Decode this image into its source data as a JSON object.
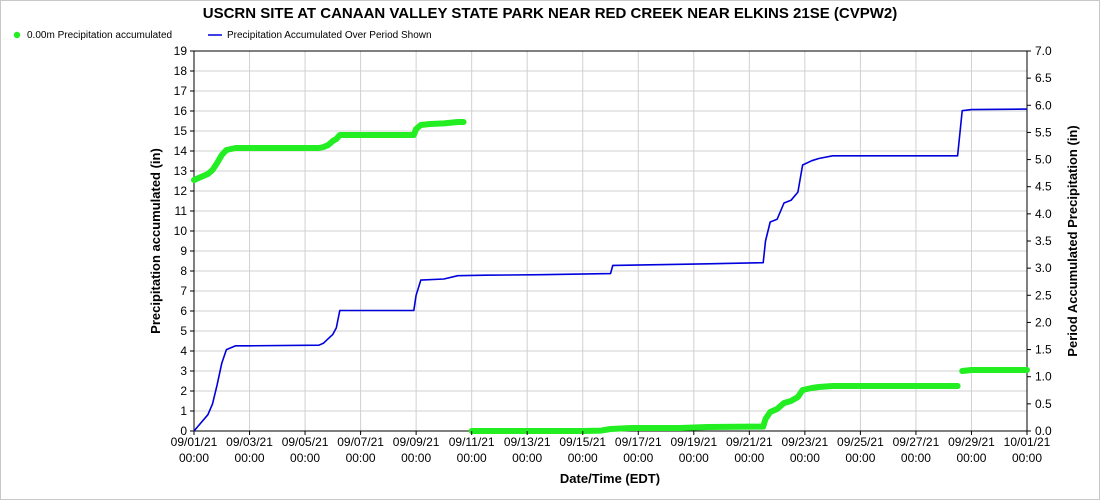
{
  "chart_data": {
    "type": "line",
    "title": "USCRN SITE AT CANAAN VALLEY STATE PARK NEAR RED CREEK NEAR ELKINS 21SE (CVPW2)",
    "xlabel": "Date/Time (EDT)",
    "ylabel_left": "Precipitation accumulated (in)",
    "ylabel_right": "Period Accumulated Precipitation (in)",
    "x_tick_dates": [
      "09/01/21",
      "09/03/21",
      "09/05/21",
      "09/07/21",
      "09/09/21",
      "09/11/21",
      "09/13/21",
      "09/15/21",
      "09/17/21",
      "09/19/21",
      "09/21/21",
      "09/23/21",
      "09/25/21",
      "09/27/21",
      "09/29/21",
      "10/01/21"
    ],
    "x_tick_time": "00:00",
    "xlim": [
      "2021-09-01 00:00",
      "2021-10-01 00:00"
    ],
    "ylim_left": [
      0,
      19
    ],
    "yticks_left": [
      "0",
      "1",
      "2",
      "3",
      "4",
      "5",
      "6",
      "7",
      "8",
      "9",
      "10",
      "11",
      "12",
      "13",
      "14",
      "15",
      "16",
      "17",
      "18",
      "19"
    ],
    "ylim_right": [
      0,
      7
    ],
    "yticks_right": [
      "0.0",
      "0.5",
      "1.0",
      "1.5",
      "2.0",
      "2.5",
      "3.0",
      "3.5",
      "4.0",
      "4.5",
      "5.0",
      "5.5",
      "6.0",
      "6.5",
      "7.0"
    ],
    "grid": true,
    "legend_position": "top-left",
    "series": [
      {
        "name": "0.00m Precipitation accumulated",
        "color": "#22ee22",
        "axis": "left",
        "style": "thick",
        "segments": [
          [
            [
              "2021-09-01 00:00",
              12.55
            ],
            [
              "2021-09-01 06:00",
              12.7
            ],
            [
              "2021-09-01 12:00",
              12.85
            ],
            [
              "2021-09-01 16:00",
              13.05
            ],
            [
              "2021-09-01 20:00",
              13.4
            ],
            [
              "2021-09-02 00:00",
              13.8
            ],
            [
              "2021-09-02 04:00",
              14.05
            ],
            [
              "2021-09-02 12:00",
              14.15
            ],
            [
              "2021-09-03 00:00",
              14.15
            ],
            [
              "2021-09-05 12:00",
              14.15
            ],
            [
              "2021-09-05 16:00",
              14.2
            ],
            [
              "2021-09-05 20:00",
              14.3
            ],
            [
              "2021-09-06 00:00",
              14.5
            ],
            [
              "2021-09-06 03:00",
              14.6
            ],
            [
              "2021-09-06 06:00",
              14.8
            ],
            [
              "2021-09-07 12:00",
              14.8
            ],
            [
              "2021-09-08 12:00",
              14.8
            ],
            [
              "2021-09-08 22:00",
              14.8
            ],
            [
              "2021-09-09 00:00",
              15.1
            ],
            [
              "2021-09-09 04:00",
              15.3
            ],
            [
              "2021-09-09 12:00",
              15.35
            ],
            [
              "2021-09-10 00:00",
              15.38
            ],
            [
              "2021-09-10 12:00",
              15.45
            ],
            [
              "2021-09-10 17:00",
              15.45
            ]
          ],
          [
            [
              "2021-09-11 00:00",
              0.0
            ],
            [
              "2021-09-13 12:00",
              0.0
            ],
            [
              "2021-09-15 00:00",
              0.0
            ],
            [
              "2021-09-15 16:00",
              0.02
            ],
            [
              "2021-09-16 00:00",
              0.1
            ],
            [
              "2021-09-16 18:00",
              0.15
            ],
            [
              "2021-09-18 12:00",
              0.15
            ],
            [
              "2021-09-19 12:00",
              0.2
            ],
            [
              "2021-09-21 00:00",
              0.22
            ],
            [
              "2021-09-21 12:00",
              0.22
            ],
            [
              "2021-09-21 14:00",
              0.6
            ],
            [
              "2021-09-21 18:00",
              0.95
            ],
            [
              "2021-09-22 00:00",
              1.1
            ],
            [
              "2021-09-22 06:00",
              1.4
            ],
            [
              "2021-09-22 12:00",
              1.5
            ],
            [
              "2021-09-22 18:00",
              1.7
            ],
            [
              "2021-09-22 22:00",
              2.05
            ],
            [
              "2021-09-23 06:00",
              2.15
            ],
            [
              "2021-09-23 12:00",
              2.2
            ],
            [
              "2021-09-24 00:00",
              2.25
            ],
            [
              "2021-09-28 12:00",
              2.25
            ]
          ],
          [
            [
              "2021-09-28 16:00",
              3.0
            ],
            [
              "2021-09-29 00:00",
              3.05
            ],
            [
              "2021-10-01 00:00",
              3.05
            ]
          ]
        ]
      },
      {
        "name": "Precipitation Accumulated Over Period Shown",
        "color": "#0000dd",
        "axis": "right",
        "style": "thin",
        "segments": [
          [
            [
              "2021-09-01 00:00",
              0.0
            ],
            [
              "2021-09-01 06:00",
              0.15
            ],
            [
              "2021-09-01 12:00",
              0.3
            ],
            [
              "2021-09-01 16:00",
              0.5
            ],
            [
              "2021-09-01 20:00",
              0.85
            ],
            [
              "2021-09-02 00:00",
              1.25
            ],
            [
              "2021-09-02 04:00",
              1.5
            ],
            [
              "2021-09-02 12:00",
              1.57
            ],
            [
              "2021-09-03 00:00",
              1.57
            ],
            [
              "2021-09-05 12:00",
              1.58
            ],
            [
              "2021-09-05 16:00",
              1.62
            ],
            [
              "2021-09-05 20:00",
              1.7
            ],
            [
              "2021-09-06 00:00",
              1.78
            ],
            [
              "2021-09-06 03:00",
              1.9
            ],
            [
              "2021-09-06 06:00",
              2.22
            ],
            [
              "2021-09-08 22:00",
              2.22
            ],
            [
              "2021-09-09 00:00",
              2.5
            ],
            [
              "2021-09-09 04:00",
              2.78
            ],
            [
              "2021-09-10 00:00",
              2.8
            ],
            [
              "2021-09-10 12:00",
              2.86
            ],
            [
              "2021-09-11 12:00",
              2.87
            ],
            [
              "2021-09-13 12:00",
              2.88
            ],
            [
              "2021-09-16 00:00",
              2.9
            ],
            [
              "2021-09-16 02:00",
              3.05
            ],
            [
              "2021-09-18 12:00",
              3.07
            ],
            [
              "2021-09-19 12:00",
              3.08
            ],
            [
              "2021-09-21 12:00",
              3.1
            ],
            [
              "2021-09-21 14:00",
              3.5
            ],
            [
              "2021-09-21 18:00",
              3.85
            ],
            [
              "2021-09-22 00:00",
              3.9
            ],
            [
              "2021-09-22 06:00",
              4.2
            ],
            [
              "2021-09-22 12:00",
              4.25
            ],
            [
              "2021-09-22 18:00",
              4.4
            ],
            [
              "2021-09-22 22:00",
              4.9
            ],
            [
              "2021-09-23 06:00",
              4.98
            ],
            [
              "2021-09-23 12:00",
              5.02
            ],
            [
              "2021-09-24 00:00",
              5.07
            ],
            [
              "2021-09-28 12:00",
              5.07
            ],
            [
              "2021-09-28 16:00",
              5.9
            ],
            [
              "2021-09-29 00:00",
              5.92
            ],
            [
              "2021-10-01 00:00",
              5.93
            ]
          ]
        ]
      }
    ]
  }
}
